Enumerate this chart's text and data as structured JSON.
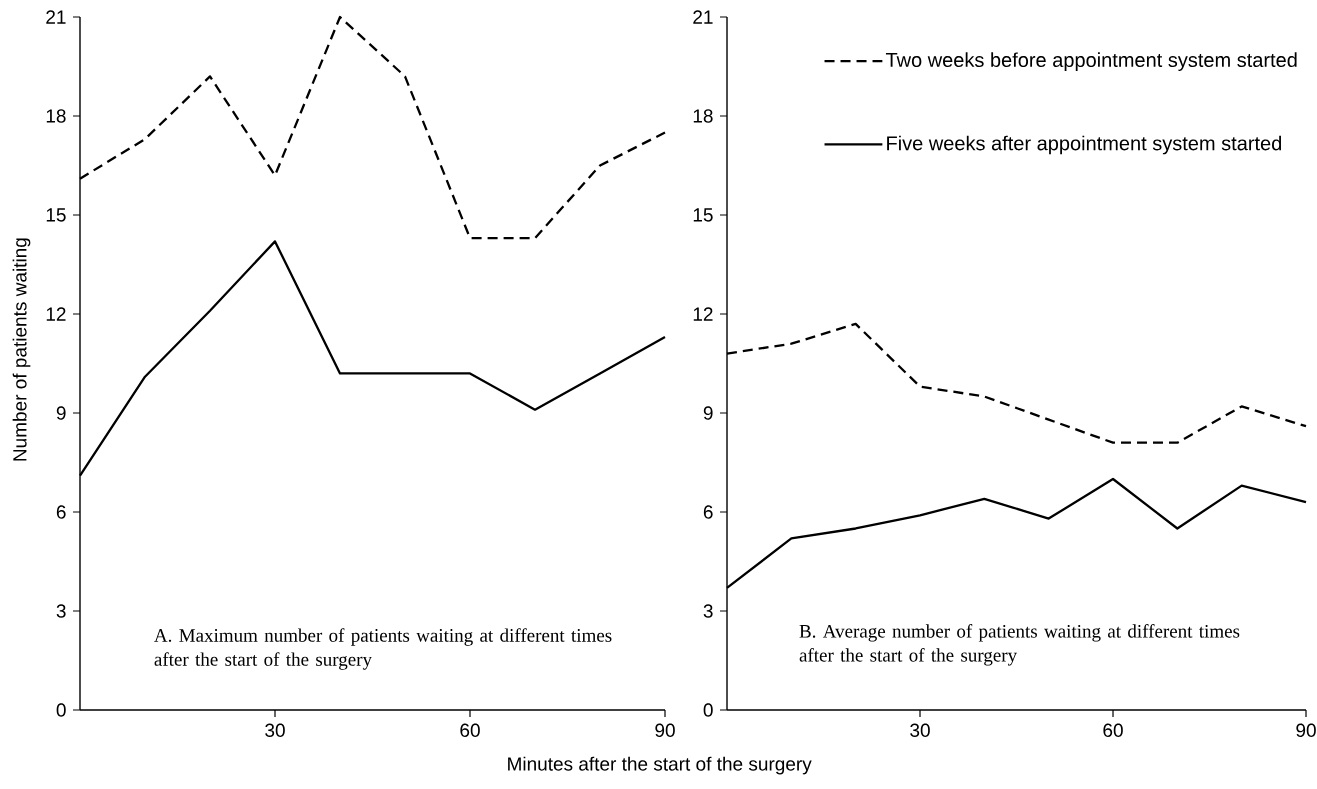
{
  "chart_data": [
    {
      "type": "line",
      "xlabel": "Minutes  after the start of the surgery",
      "ylabel": "Number of patients waiting",
      "x": [
        0,
        10,
        20,
        30,
        40,
        50,
        60,
        70,
        80,
        90
      ],
      "series": [
        {
          "color": "#000000",
          "line_style": "dashed",
          "values": [
            16.1,
            17.3,
            19.2,
            16.2,
            21.0,
            19.2,
            14.3,
            14.3,
            16.5,
            17.5
          ]
        },
        {
          "color": "#000000",
          "line_style": "solid",
          "values": [
            7.1,
            10.1,
            12.1,
            14.2,
            10.2,
            10.2,
            10.2,
            9.1,
            10.2,
            11.3
          ]
        }
      ],
      "xlim": [
        0,
        90
      ],
      "xticks": [
        30,
        60,
        90
      ],
      "ylim": [
        0,
        21
      ],
      "yticks": [
        0,
        3,
        6,
        9,
        12,
        15,
        18,
        21
      ],
      "annotations": [
        "A. Maximum number of patients waiting at different times after the start of the surgery"
      ]
    },
    {
      "type": "line",
      "x": [
        0,
        10,
        20,
        30,
        40,
        50,
        60,
        70,
        80,
        90
      ],
      "series": [
        {
          "name": "Two weeks before appointment system started",
          "color": "#000000",
          "line_style": "dashed",
          "values": [
            10.8,
            11.1,
            11.7,
            9.8,
            9.5,
            8.8,
            8.1,
            8.1,
            9.2,
            8.6
          ]
        },
        {
          "name": "Five weeks after appointment system started",
          "color": "#000000",
          "line_style": "solid",
          "values": [
            3.7,
            5.2,
            5.5,
            5.9,
            6.4,
            5.8,
            7.0,
            5.5,
            6.8,
            6.3
          ]
        }
      ],
      "xlim": [
        0,
        90
      ],
      "xticks": [
        30,
        60,
        90
      ],
      "ylim": [
        0,
        21
      ],
      "yticks": [
        0,
        3,
        6,
        9,
        12,
        15,
        18,
        21
      ],
      "legend": "top right",
      "annotations": [
        "B. Average number of patients waiting at different times after the start of the surgery"
      ]
    }
  ]
}
